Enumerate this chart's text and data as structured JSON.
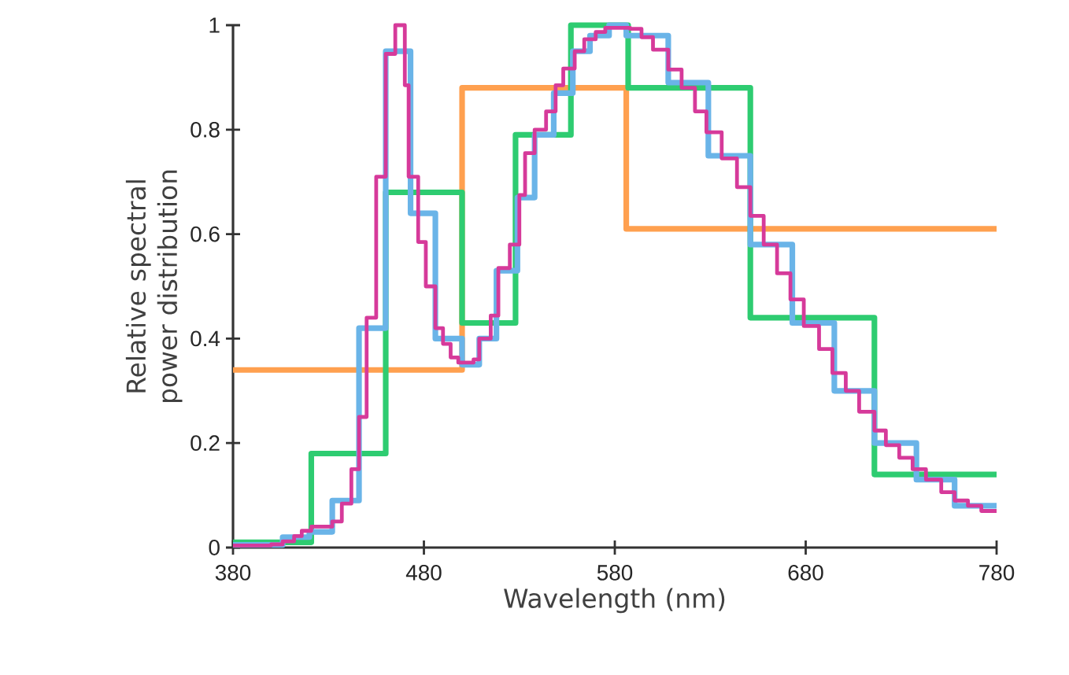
{
  "chart_data": {
    "type": "step",
    "xlabel": "Wavelength (nm)",
    "ylabel": "Relative spectral power distribution",
    "xlim": [
      380,
      780
    ],
    "ylim": [
      0,
      1
    ],
    "xticks": [
      380,
      480,
      580,
      680,
      780
    ],
    "yticks": [
      0,
      0.2,
      0.4,
      0.6,
      0.8,
      1
    ],
    "series": [
      {
        "color": "#ffa04f",
        "x": [
          380,
          500,
          586,
          780
        ],
        "values": [
          0.34,
          0.88,
          0.61,
          0.61
        ]
      },
      {
        "color": "#2ecc71",
        "x": [
          380,
          421,
          460,
          500,
          528,
          557,
          587,
          651,
          716,
          780
        ],
        "values": [
          0.01,
          0.18,
          0.68,
          0.43,
          0.79,
          1.0,
          0.88,
          0.44,
          0.14,
          0.14
        ]
      },
      {
        "color": "#6ab4e8",
        "x": [
          380,
          406,
          420,
          432,
          446,
          460,
          473,
          486,
          500,
          509,
          518,
          529,
          538,
          548,
          558,
          567,
          577,
          586,
          608,
          629,
          651,
          673,
          695,
          716,
          738,
          758,
          780
        ],
        "values": [
          0.005,
          0.02,
          0.03,
          0.09,
          0.42,
          0.95,
          0.64,
          0.4,
          0.35,
          0.4,
          0.53,
          0.67,
          0.79,
          0.87,
          0.95,
          0.98,
          1.0,
          0.98,
          0.89,
          0.75,
          0.58,
          0.43,
          0.3,
          0.2,
          0.13,
          0.08,
          0.08
        ]
      },
      {
        "color": "#d63a9a",
        "x": [
          380,
          400,
          406,
          412,
          416,
          421,
          432,
          437,
          442,
          446,
          450,
          455,
          460,
          465,
          470,
          472,
          477,
          481,
          486,
          490,
          494,
          498,
          506,
          509,
          515,
          519,
          525,
          530,
          533,
          538,
          544,
          549,
          553,
          559,
          564,
          570,
          575,
          588,
          594,
          600,
          608,
          615,
          622,
          628,
          636,
          644,
          651,
          658,
          665,
          672,
          679,
          687,
          694,
          701,
          708,
          716,
          722,
          729,
          736,
          743,
          751,
          758,
          765,
          772,
          780
        ],
        "values": [
          0.004,
          0.006,
          0.012,
          0.022,
          0.032,
          0.04,
          0.05,
          0.084,
          0.15,
          0.25,
          0.44,
          0.71,
          0.945,
          1.0,
          0.885,
          0.71,
          0.585,
          0.5,
          0.42,
          0.39,
          0.364,
          0.354,
          0.36,
          0.4,
          0.444,
          0.535,
          0.58,
          0.675,
          0.755,
          0.8,
          0.835,
          0.885,
          0.917,
          0.95,
          0.973,
          0.987,
          0.995,
          0.993,
          0.977,
          0.953,
          0.915,
          0.88,
          0.835,
          0.795,
          0.745,
          0.69,
          0.635,
          0.58,
          0.525,
          0.475,
          0.424,
          0.38,
          0.334,
          0.3,
          0.26,
          0.224,
          0.196,
          0.172,
          0.15,
          0.13,
          0.106,
          0.09,
          0.08,
          0.07,
          0.07
        ]
      }
    ]
  }
}
